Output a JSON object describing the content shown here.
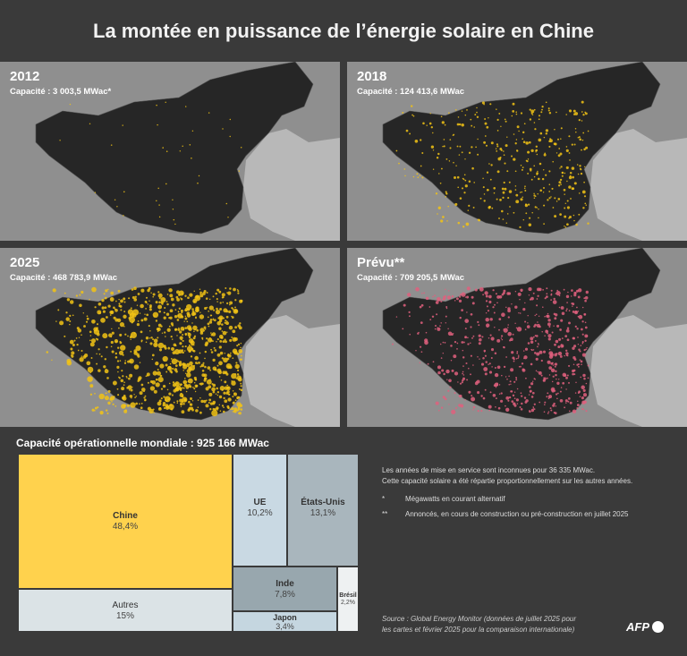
{
  "title": "La montée en puissance de l’énergie solaire en Chine",
  "maps": [
    {
      "year": "2012",
      "capacity": "Capacité : 3 003,5 MWac*",
      "density": 0.05,
      "color": "#f2c315"
    },
    {
      "year": "2018",
      "capacity": "Capacité : 124 413,6 MWac",
      "density": 0.45,
      "color": "#f2c315"
    },
    {
      "year": "2025",
      "capacity": "Capacité : 468 783,9 MWac",
      "density": 1.0,
      "color": "#f2c315"
    },
    {
      "year": "Prévu**",
      "capacity": "Capacité : 709 205,5 MWac",
      "density": 0.7,
      "color": "#e0607e"
    }
  ],
  "treemap": {
    "title": "Capacité opérationnelle mondiale : 925 166 MWac",
    "items": [
      {
        "name": "Chine",
        "value": "48,4%",
        "color": "#ffd24d"
      },
      {
        "name": "UE",
        "value": "10,2%",
        "color": "#c9d9e3"
      },
      {
        "name": "États-Unis",
        "value": "13,1%",
        "color": "#a9b6bd"
      },
      {
        "name": "Autres",
        "value": "15%",
        "color": "#dbe3e6"
      },
      {
        "name": "Inde",
        "value": "7,8%",
        "color": "#98a7ae"
      },
      {
        "name": "Japon",
        "value": "3,4%",
        "color": "#c5d6e0"
      },
      {
        "name": "Brésil",
        "value": "2,2%",
        "color": "#eef1f2"
      }
    ]
  },
  "notes": {
    "line1": "Les années de mise en service sont inconnues pour 36 335 MWac.",
    "line2": "Cette capacité solaire a été répartie proportionnellement sur les autres années.",
    "star1_mark": "*",
    "star1_text": "Mégawatts en courant alternatif",
    "star2_mark": "**",
    "star2_text": "Annoncés, en cours de construction ou pré-construction en juillet 2025"
  },
  "source": {
    "line1": "Source : Global Energy Monitor (données de juillet 2025 pour",
    "line2": "les cartes et février 2025 pour la comparaison internationale)"
  },
  "logo": "AFP"
}
